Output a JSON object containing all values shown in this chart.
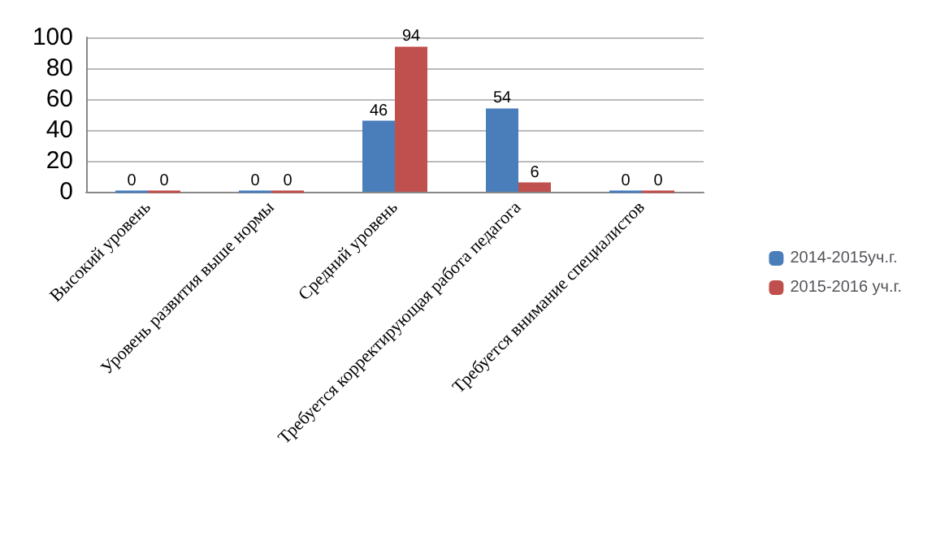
{
  "chart_data": {
    "type": "bar",
    "categories": [
      "Высокий уровень",
      "Уровень развития выше нормы",
      "Средний уровень",
      "Требуется корректирующая работа педагога",
      "Требуется внимание специалистов"
    ],
    "series": [
      {
        "name": "2014-2015уч.г.",
        "color": "#4a7ebb",
        "values": [
          0,
          0,
          46,
          54,
          0
        ]
      },
      {
        "name": "2015-2016 уч.г.",
        "color": "#c0504d",
        "values": [
          0,
          0,
          94,
          6,
          0
        ]
      }
    ],
    "ylim": [
      0,
      100
    ],
    "yticks": [
      0,
      20,
      40,
      60,
      80,
      100
    ],
    "grid": "y",
    "legend": "right",
    "data_labels": true
  }
}
